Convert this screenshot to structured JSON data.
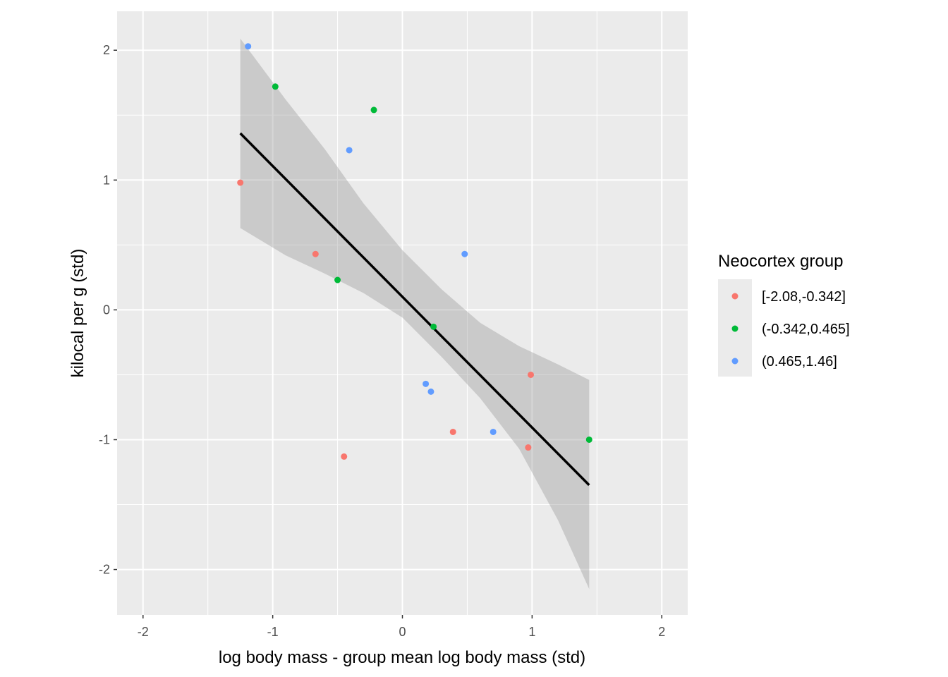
{
  "chart_data": {
    "type": "scatter",
    "xlabel": "log body mass - group mean log body mass (std)",
    "ylabel": "kilocal per g (std)",
    "xlim": [
      -2.2,
      2.2
    ],
    "ylim": [
      -2.35,
      2.3
    ],
    "x_ticks": [
      -2,
      -1,
      0,
      1,
      2
    ],
    "y_ticks": [
      -2,
      -1,
      0,
      1,
      2
    ],
    "x_tick_labels": [
      "-2",
      "-1",
      "0",
      "1",
      "2"
    ],
    "y_tick_labels": [
      "-2",
      "-1",
      "0",
      "1",
      "2"
    ],
    "grid": true,
    "background": "#ebebeb",
    "legend": {
      "title": "Neocortex group",
      "position": "right",
      "entries": [
        "[-2.08,-0.342]",
        "(-0.342,0.465]",
        "(0.465,1.46]"
      ]
    },
    "series": [
      {
        "name": "[-2.08,-0.342]",
        "color": "#f8766d",
        "points": [
          {
            "x": -1.25,
            "y": 0.98
          },
          {
            "x": -0.67,
            "y": 0.43
          },
          {
            "x": -0.45,
            "y": -1.13
          },
          {
            "x": 0.39,
            "y": -0.94
          },
          {
            "x": 0.99,
            "y": -0.5
          },
          {
            "x": 0.97,
            "y": -1.06
          }
        ]
      },
      {
        "name": "(-0.342,0.465]",
        "color": "#00ba38",
        "points": [
          {
            "x": -0.98,
            "y": 1.72
          },
          {
            "x": -0.22,
            "y": 1.54
          },
          {
            "x": -0.5,
            "y": 0.23
          },
          {
            "x": 0.24,
            "y": -0.13
          },
          {
            "x": 1.44,
            "y": -1.0
          }
        ]
      },
      {
        "name": "(0.465,1.46]",
        "color": "#619cff",
        "points": [
          {
            "x": -1.19,
            "y": 2.03
          },
          {
            "x": -0.41,
            "y": 1.23
          },
          {
            "x": 0.48,
            "y": 0.43
          },
          {
            "x": 0.18,
            "y": -0.57
          },
          {
            "x": 0.22,
            "y": -0.63
          },
          {
            "x": 0.7,
            "y": -0.94
          }
        ]
      }
    ],
    "fit_line": {
      "color": "#000000",
      "x": [
        -1.25,
        1.44
      ],
      "y": [
        1.36,
        -1.35
      ]
    },
    "confidence_band": {
      "color": "#999999",
      "x": [
        -1.25,
        -0.9,
        -0.6,
        -0.3,
        0.0,
        0.3,
        0.6,
        0.9,
        1.2,
        1.44
      ],
      "upper": [
        2.09,
        1.62,
        1.24,
        0.82,
        0.46,
        0.16,
        -0.1,
        -0.28,
        -0.42,
        -0.54
      ],
      "lower": [
        0.63,
        0.42,
        0.28,
        0.13,
        -0.06,
        -0.36,
        -0.68,
        -1.07,
        -1.62,
        -2.15
      ]
    }
  }
}
